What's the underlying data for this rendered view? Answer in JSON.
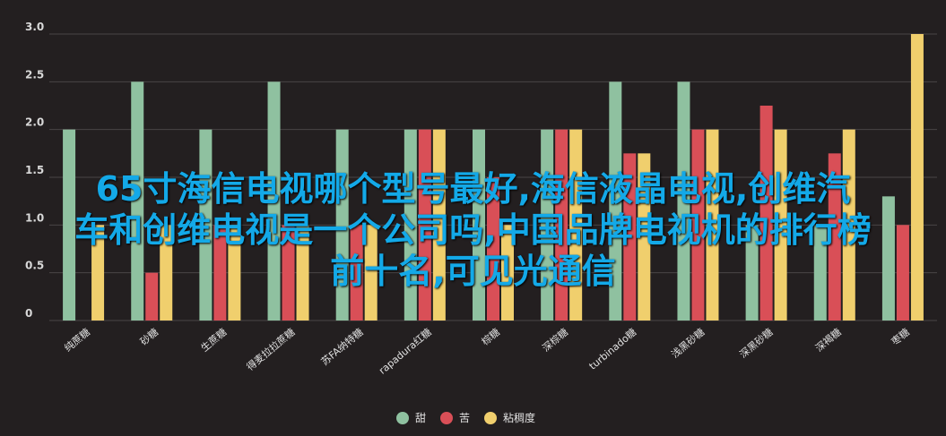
{
  "chart_data": {
    "type": "bar",
    "categories": [
      "纯蔗糖",
      "砂糖",
      "生蔗糖",
      "得麦拉拉蔗糖",
      "苏FA纳特糖",
      "rapadura红糖",
      "棕糖",
      "深棕糖",
      "turbinado糖",
      "浅黑砂糖",
      "深黑砂糖",
      "深褐糖",
      "枣糖"
    ],
    "series": [
      {
        "name": "甜",
        "color": "#8fc1a0",
        "values": [
          2,
          2.5,
          2,
          2.5,
          2,
          2,
          2,
          2,
          2.5,
          2.5,
          1,
          1,
          1.3
        ]
      },
      {
        "name": "苦",
        "color": "#d94f57",
        "values": [
          0,
          0.5,
          1,
          1,
          1,
          2,
          1.5,
          2,
          1.75,
          2,
          2.25,
          1.75,
          1
        ]
      },
      {
        "name": "粘稠度",
        "color": "#f0cf6d",
        "values": [
          1,
          1,
          1,
          1,
          1,
          2,
          1,
          2,
          1.75,
          2,
          2,
          2,
          3
        ]
      }
    ],
    "yticks": [
      "0",
      "0.5",
      "1.0",
      "1.5",
      "2.0",
      "2.5",
      "3.0"
    ],
    "ylim": [
      0,
      3
    ],
    "grid": true,
    "legend_position": "bottom-center"
  },
  "overlay": {
    "line1": "65寸海信电视哪个型号最好,海信液晶电视,创维汽",
    "line2": "车和创维电视是一个公司吗,中国品牌电视机的排行榜",
    "line3": "前十名,可见光通信"
  }
}
